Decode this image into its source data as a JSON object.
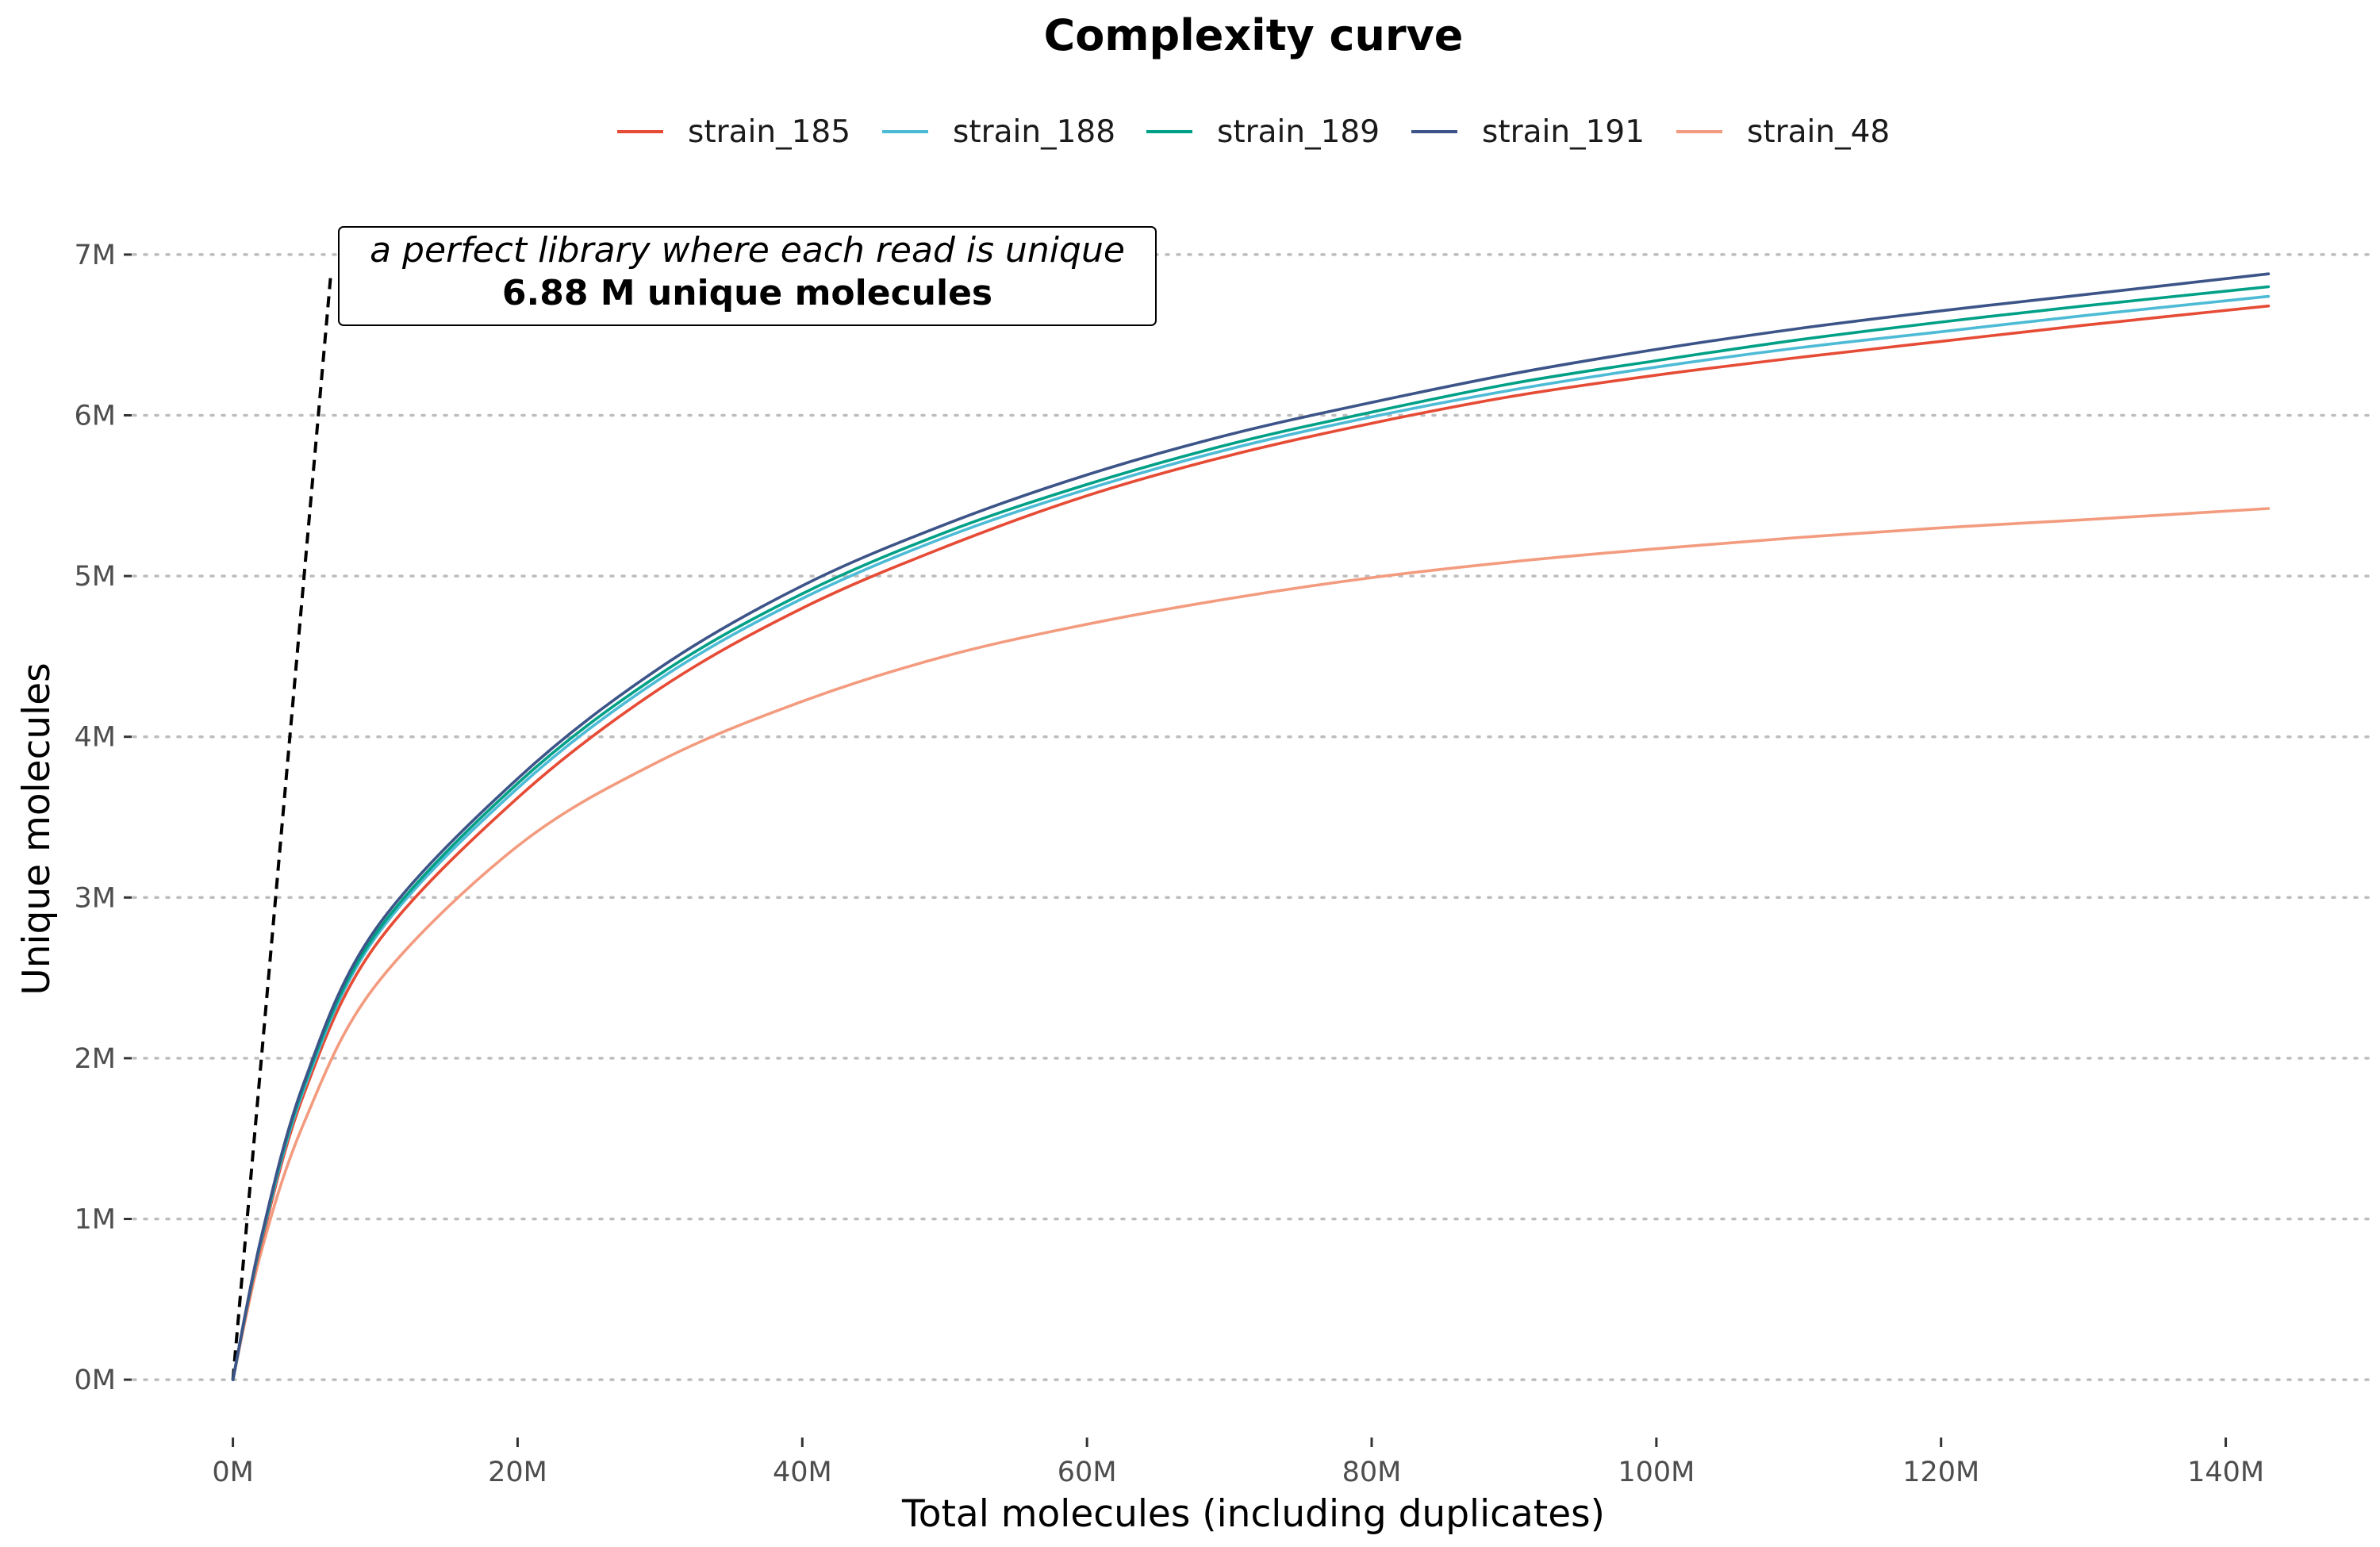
{
  "chart_data": {
    "type": "line",
    "title": "Complexity curve",
    "xlabel": "Total molecules (including duplicates)",
    "ylabel": "Unique molecules",
    "xlim": [
      -7,
      150
    ],
    "ylim": [
      -0.35,
      7.35
    ],
    "x_ticks": [
      0,
      20,
      40,
      60,
      80,
      100,
      120,
      140
    ],
    "x_tick_labels": [
      "0M",
      "20M",
      "40M",
      "60M",
      "80M",
      "100M",
      "120M",
      "140M"
    ],
    "y_ticks": [
      0,
      1,
      2,
      3,
      4,
      5,
      6,
      7
    ],
    "y_tick_labels": [
      "0M",
      "1M",
      "2M",
      "3M",
      "4M",
      "5M",
      "6M",
      "7M"
    ],
    "grid": "horizontal dotted",
    "legend_position": "top",
    "series": [
      {
        "name": "strain_185",
        "color": "#E64B35",
        "x": [
          0,
          2,
          5,
          10,
          20,
          30,
          40,
          50,
          60,
          70,
          80,
          90,
          100,
          110,
          120,
          130,
          143
        ],
        "y": [
          0,
          0.85,
          1.78,
          2.7,
          3.62,
          4.3,
          4.8,
          5.18,
          5.5,
          5.75,
          5.95,
          6.12,
          6.25,
          6.36,
          6.46,
          6.56,
          6.68
        ]
      },
      {
        "name": "strain_188",
        "color": "#4DBBD5",
        "x": [
          0,
          2,
          5,
          10,
          20,
          30,
          40,
          50,
          60,
          70,
          80,
          90,
          100,
          110,
          120,
          130,
          143
        ],
        "y": [
          0,
          0.87,
          1.81,
          2.75,
          3.68,
          4.36,
          4.86,
          5.24,
          5.54,
          5.79,
          5.99,
          6.16,
          6.3,
          6.42,
          6.52,
          6.62,
          6.74
        ]
      },
      {
        "name": "strain_189",
        "color": "#00A087",
        "x": [
          0,
          2,
          5,
          10,
          20,
          30,
          40,
          50,
          60,
          70,
          80,
          90,
          100,
          110,
          120,
          130,
          143
        ],
        "y": [
          0,
          0.88,
          1.83,
          2.77,
          3.71,
          4.39,
          4.89,
          5.27,
          5.57,
          5.82,
          6.02,
          6.2,
          6.34,
          6.47,
          6.58,
          6.68,
          6.8
        ]
      },
      {
        "name": "strain_191",
        "color": "#3C5488",
        "x": [
          0,
          2,
          5,
          10,
          20,
          30,
          40,
          50,
          60,
          70,
          80,
          90,
          100,
          110,
          120,
          130,
          143
        ],
        "y": [
          0,
          0.89,
          1.85,
          2.8,
          3.74,
          4.43,
          4.94,
          5.32,
          5.63,
          5.88,
          6.08,
          6.26,
          6.41,
          6.54,
          6.65,
          6.75,
          6.88
        ]
      },
      {
        "name": "strain_48",
        "color": "#F39B7F",
        "x": [
          0,
          2,
          5,
          10,
          20,
          30,
          40,
          50,
          60,
          70,
          80,
          90,
          100,
          110,
          120,
          130,
          143
        ],
        "y": [
          0,
          0.8,
          1.6,
          2.45,
          3.32,
          3.85,
          4.22,
          4.5,
          4.7,
          4.86,
          4.99,
          5.09,
          5.17,
          5.24,
          5.3,
          5.35,
          5.42
        ]
      }
    ],
    "reference_line": {
      "style": "dashed",
      "color": "#000000",
      "x": [
        0,
        6.88
      ],
      "y": [
        0,
        6.88
      ]
    },
    "annotation": {
      "line1": "a perfect library where each read is unique",
      "line2": "6.88 M unique molecules"
    }
  }
}
